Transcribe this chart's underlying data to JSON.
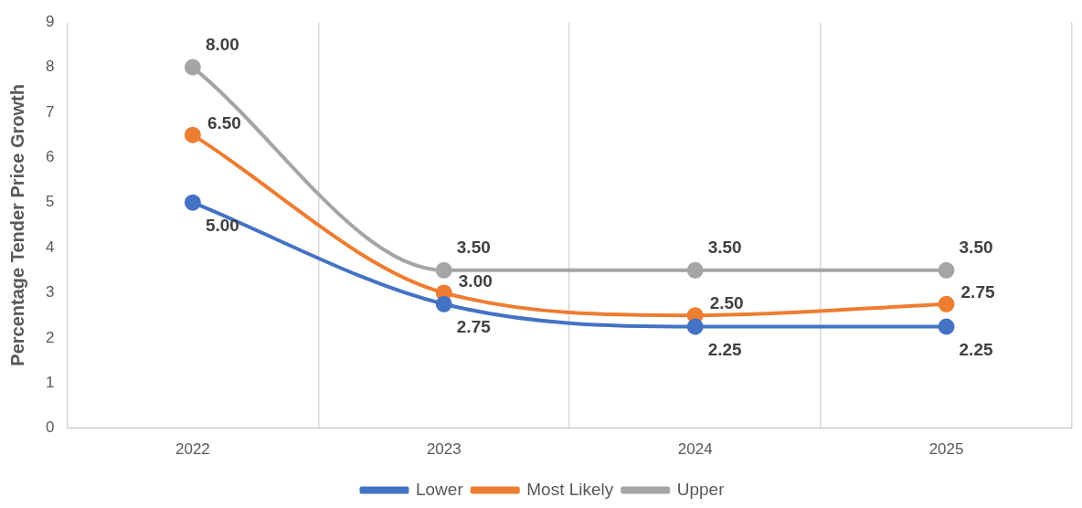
{
  "chart_data": {
    "type": "line",
    "ylabel": "Percentage Tender Price Growth",
    "categories": [
      "2022",
      "2023",
      "2024",
      "2025"
    ],
    "series": [
      {
        "name": "Lower",
        "color": "#4472c4",
        "values": [
          5.0,
          2.75,
          2.25,
          2.25
        ],
        "value_labels": [
          "5.00",
          "2.75",
          "2.25",
          "2.25"
        ]
      },
      {
        "name": "Most Likely",
        "color": "#ed7d31",
        "values": [
          6.5,
          3.0,
          2.5,
          2.75
        ],
        "value_labels": [
          "6.50",
          "3.00",
          "2.50",
          "2.75"
        ]
      },
      {
        "name": "Upper",
        "color": "#a5a5a5",
        "values": [
          8.0,
          3.5,
          3.5,
          3.5
        ],
        "value_labels": [
          "8.00",
          "3.50",
          "3.50",
          "3.50"
        ]
      }
    ],
    "ylim": [
      0,
      9
    ],
    "yticks": [
      0,
      1,
      2,
      3,
      4,
      5,
      6,
      7,
      8,
      9
    ],
    "grid": "x",
    "legend": "bottom",
    "marker": "circle",
    "line_style": "solid"
  }
}
